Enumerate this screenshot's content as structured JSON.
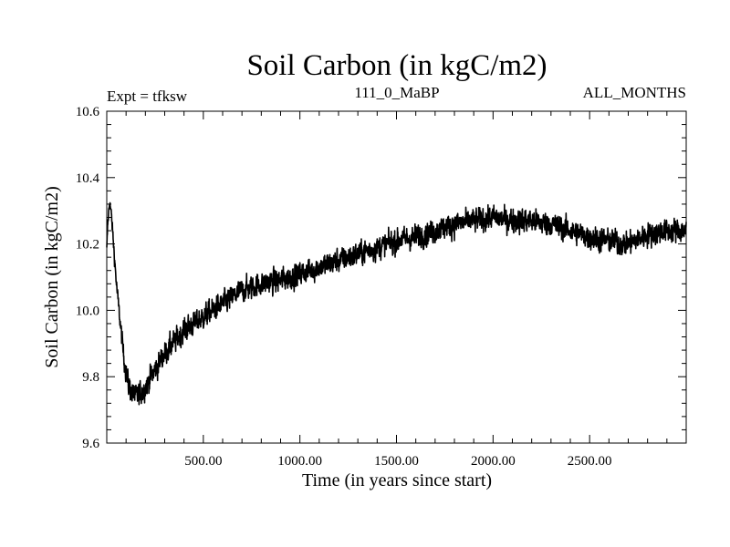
{
  "chart_data": {
    "type": "line",
    "title": "Soil Carbon (in kgC/m2)",
    "experiment_label": "Expt = tfksw",
    "subtitle": "111_0_MaBP",
    "period_label": "ALL_MONTHS",
    "xlabel": "Time (in years since start)",
    "ylabel": "Soil Carbon (in kgC/m2)",
    "xlim": [
      0,
      3000
    ],
    "ylim": [
      9.6,
      10.6
    ],
    "x_major_ticks": [
      500,
      1000,
      1500,
      2000,
      2500
    ],
    "x_tick_labels": [
      "500.00",
      "1000.00",
      "1500.00",
      "2000.00",
      "2500.00"
    ],
    "y_major_ticks": [
      9.6,
      9.8,
      10.0,
      10.2,
      10.4,
      10.6
    ],
    "y_tick_labels": [
      "9.6",
      "9.8",
      "10.0",
      "10.2",
      "10.4",
      "10.6"
    ],
    "x_minor_step": 100,
    "y_minor_step": 0.04,
    "line_color": "#000000",
    "series": [
      {
        "name": "Soil Carbon",
        "x": [
          0,
          5,
          15,
          25,
          35,
          50,
          70,
          90,
          110,
          130,
          150,
          175,
          200,
          250,
          300,
          400,
          500,
          600,
          700,
          800,
          900,
          1000,
          1100,
          1200,
          1300,
          1400,
          1500,
          1600,
          1700,
          1800,
          1900,
          2000,
          2100,
          2200,
          2300,
          2400,
          2500,
          2600,
          2700,
          2800,
          2900,
          3000
        ],
        "y": [
          10.18,
          10.26,
          10.33,
          10.28,
          10.2,
          10.08,
          9.96,
          9.85,
          9.78,
          9.75,
          9.74,
          9.75,
          9.77,
          9.82,
          9.87,
          9.94,
          9.98,
          10.02,
          10.06,
          10.08,
          10.09,
          10.11,
          10.13,
          10.15,
          10.17,
          10.19,
          10.21,
          10.22,
          10.24,
          10.26,
          10.27,
          10.28,
          10.27,
          10.27,
          10.26,
          10.24,
          10.22,
          10.21,
          10.2,
          10.23,
          10.24,
          10.24
        ],
        "noise": [
          0.02,
          0.02,
          0.02,
          0.02,
          0.02,
          0.02,
          0.025,
          0.03,
          0.035,
          0.035,
          0.035,
          0.035,
          0.035,
          0.035,
          0.035,
          0.035,
          0.035,
          0.035,
          0.035,
          0.035,
          0.035,
          0.035,
          0.035,
          0.035,
          0.035,
          0.035,
          0.035,
          0.035,
          0.035,
          0.035,
          0.035,
          0.035,
          0.035,
          0.035,
          0.035,
          0.035,
          0.035,
          0.035,
          0.035,
          0.035,
          0.035,
          0.035
        ]
      }
    ]
  }
}
